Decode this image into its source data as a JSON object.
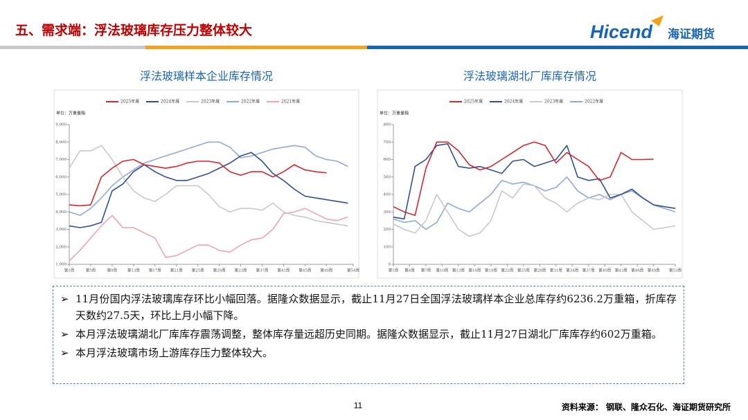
{
  "header": {
    "title": "五、需求端：浮法玻璃库存压力整体较大",
    "logo_brand": "Hicend",
    "logo_company": "海证期货"
  },
  "chart_data": [
    {
      "type": "line",
      "title": "浮法玻璃样本企业库存情况",
      "ylabel": "单位：万重量箱",
      "x": [
        1,
        3,
        5,
        7,
        9,
        11,
        13,
        15,
        17,
        19,
        21,
        23,
        25,
        27,
        29,
        31,
        33,
        35,
        37,
        39,
        41,
        43,
        45,
        47,
        49,
        51,
        53
      ],
      "xlim": [
        1,
        54
      ],
      "xticks": [
        {
          "value": 1,
          "label": "第1周"
        },
        {
          "value": 5,
          "label": "第5周"
        },
        {
          "value": 9,
          "label": "第9周"
        },
        {
          "value": 13,
          "label": "第13周"
        },
        {
          "value": 17,
          "label": "第17周"
        },
        {
          "value": 21,
          "label": "第21周"
        },
        {
          "value": 25,
          "label": "第25周"
        },
        {
          "value": 29,
          "label": "第29周"
        },
        {
          "value": 33,
          "label": "第33周"
        },
        {
          "value": 37,
          "label": "第37周"
        },
        {
          "value": 41,
          "label": "第41周"
        },
        {
          "value": 45,
          "label": "第45周"
        },
        {
          "value": 49,
          "label": "第49周"
        },
        {
          "value": 54,
          "label": "第54周"
        }
      ],
      "ylim": [
        1000,
        9000
      ],
      "yticks": [
        {
          "value": 1000,
          "label": "1,000"
        },
        {
          "value": 2000,
          "label": "2,000"
        },
        {
          "value": 3000,
          "label": "3,000"
        },
        {
          "value": 4000,
          "label": "4,000"
        },
        {
          "value": 5000,
          "label": "5,000"
        },
        {
          "value": 6000,
          "label": "6,000"
        },
        {
          "value": 7000,
          "label": "7,000"
        },
        {
          "value": 8000,
          "label": "8,000"
        },
        {
          "value": 9000,
          "label": "9,000"
        }
      ],
      "series": [
        {
          "name": "2025年度",
          "color": "#d7262b",
          "values": [
            4400,
            4350,
            4400,
            6000,
            6500,
            6900,
            7000,
            6700,
            6600,
            6500,
            6600,
            6800,
            6900,
            6900,
            6800,
            6300,
            6100,
            6300,
            6300,
            6000,
            6300,
            6700,
            6400,
            6300,
            6236,
            null,
            null
          ]
        },
        {
          "name": "2024年度",
          "color": "#2e4f95",
          "values": [
            3200,
            3100,
            3200,
            3400,
            5200,
            5600,
            6300,
            6700,
            6300,
            6000,
            5800,
            5800,
            6000,
            6200,
            6500,
            6800,
            7200,
            7400,
            6900,
            6200,
            5800,
            5300,
            4900,
            4800,
            4700,
            4600,
            4500
          ]
        },
        {
          "name": "2023年度",
          "color": "#c8c8c8",
          "values": [
            6500,
            7500,
            7500,
            7800,
            7000,
            6000,
            5200,
            4800,
            4600,
            5000,
            5500,
            5500,
            5500,
            5000,
            4300,
            4000,
            4200,
            4200,
            4100,
            4500,
            4000,
            3800,
            3700,
            3500,
            3400,
            3300,
            3200
          ]
        },
        {
          "name": "2022年度",
          "color": "#8fa9d3",
          "values": [
            4000,
            3800,
            4200,
            4800,
            5500,
            6000,
            6400,
            6800,
            7000,
            7200,
            7400,
            7600,
            7800,
            8000,
            8000,
            7700,
            7100,
            7200,
            7400,
            7600,
            7700,
            7800,
            7700,
            7200,
            7000,
            6900,
            6600
          ]
        },
        {
          "name": "2021年度",
          "color": "#f2a3ad",
          "values": [
            1200,
            1800,
            2500,
            3200,
            3800,
            3100,
            3100,
            2800,
            2500,
            1400,
            1500,
            1800,
            2100,
            2100,
            1800,
            1700,
            2100,
            2400,
            2500,
            3000,
            3900,
            4000,
            4200,
            3900,
            3600,
            3500,
            3700
          ]
        }
      ]
    },
    {
      "type": "line",
      "title": "浮法玻璃湖北厂库库存情况",
      "ylabel": "单位：万重量箱",
      "x": [
        1,
        3,
        5,
        7,
        9,
        11,
        13,
        15,
        17,
        19,
        21,
        23,
        25,
        27,
        29,
        31,
        33,
        35,
        37,
        39,
        41,
        43,
        45,
        47,
        49,
        51,
        53
      ],
      "xlim": [
        1,
        53
      ],
      "xticks": [
        {
          "value": 1,
          "label": "第1周"
        },
        {
          "value": 4,
          "label": "第4周"
        },
        {
          "value": 7,
          "label": "第7周"
        },
        {
          "value": 10,
          "label": "第10周"
        },
        {
          "value": 13,
          "label": "第13周"
        },
        {
          "value": 16,
          "label": "第16周"
        },
        {
          "value": 19,
          "label": "第19周"
        },
        {
          "value": 22,
          "label": "第22周"
        },
        {
          "value": 25,
          "label": "第25周"
        },
        {
          "value": 28,
          "label": "第28周"
        },
        {
          "value": 31,
          "label": "第31周"
        },
        {
          "value": 34,
          "label": "第34周"
        },
        {
          "value": 37,
          "label": "第37周"
        },
        {
          "value": 40,
          "label": "第40周"
        },
        {
          "value": 43,
          "label": "第43周"
        },
        {
          "value": 46,
          "label": "第46周"
        },
        {
          "value": 49,
          "label": "第49周"
        },
        {
          "value": 53,
          "label": "第53周"
        }
      ],
      "ylim": [
        0,
        800
      ],
      "yticks": [
        0,
        100,
        200,
        300,
        400,
        500,
        600,
        700,
        800
      ],
      "series": [
        {
          "name": "2025年度",
          "color": "#d7262b",
          "values": [
            330,
            300,
            280,
            550,
            700,
            700,
            650,
            570,
            540,
            560,
            600,
            640,
            680,
            700,
            680,
            580,
            640,
            600,
            560,
            480,
            500,
            640,
            600,
            600,
            602,
            null,
            null
          ]
        },
        {
          "name": "2024年度",
          "color": "#2e4f95",
          "values": [
            270,
            260,
            560,
            600,
            680,
            690,
            560,
            550,
            560,
            540,
            520,
            590,
            600,
            560,
            580,
            600,
            680,
            500,
            480,
            490,
            380,
            400,
            430,
            380,
            340,
            330,
            320
          ]
        },
        {
          "name": "2023年度",
          "color": "#c8c8c8",
          "values": [
            230,
            200,
            180,
            250,
            400,
            300,
            200,
            160,
            180,
            250,
            420,
            380,
            460,
            450,
            380,
            350,
            300,
            350,
            380,
            370,
            400,
            400,
            300,
            250,
            200,
            210,
            220
          ]
        },
        {
          "name": "2022年度",
          "color": "#8fa9d3",
          "values": [
            260,
            240,
            250,
            200,
            240,
            350,
            320,
            300,
            350,
            400,
            480,
            460,
            470,
            450,
            420,
            440,
            500,
            420,
            380,
            400,
            370,
            400,
            420,
            380,
            340,
            320,
            300
          ]
        }
      ]
    }
  ],
  "bullets": [
    "11月份国内浮法玻璃库存环比小幅回落。据隆众数据显示，截止11月27日全国浮法玻璃样本企业总库存约6236.2万重箱，折库存天数约27.5天，环比上月小幅下降。",
    "本月浮法玻璃湖北厂库库存震荡调整，整体库存量远超历史同期。据隆众数据显示，截止11月27日湖北厂库库存约602万重箱。",
    "本月浮法玻璃市场上游库存压力整体较大。"
  ],
  "footer": {
    "page": "11",
    "source": "资料来源： 钢联、隆众石化、海证期货研究所"
  }
}
